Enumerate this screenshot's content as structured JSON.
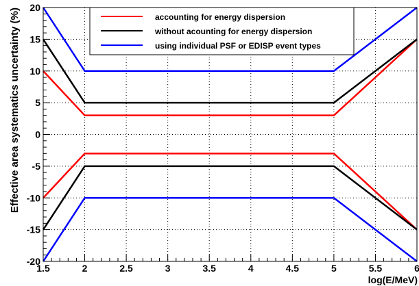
{
  "chart_data": {
    "type": "line",
    "title": "",
    "xlabel": "log(E/MeV)",
    "ylabel": "Effective area systematics uncertainty (%)",
    "xlim": [
      1.5,
      6
    ],
    "ylim": [
      -20,
      20
    ],
    "xticks": [
      1.5,
      2,
      2.5,
      3,
      3.5,
      4,
      4.5,
      5,
      5.5,
      6
    ],
    "xtick_labels": [
      "1.5",
      "2",
      "2.5",
      "3",
      "3.5",
      "4",
      "4.5",
      "5",
      "5.5",
      "6"
    ],
    "yticks": [
      -20,
      -15,
      -10,
      -5,
      0,
      5,
      10,
      15,
      20
    ],
    "ytick_labels": [
      "-20",
      "-15",
      "-10",
      "-5",
      "0",
      "5",
      "10",
      "15",
      "20"
    ],
    "grid": true,
    "legend_position": "top-center",
    "series": [
      {
        "name": "accounting for energy dispersion",
        "color": "#ff0000",
        "upper": {
          "x": [
            1.5,
            2,
            5,
            6
          ],
          "y": [
            10,
            3,
            3,
            15
          ]
        },
        "lower": {
          "x": [
            1.5,
            2,
            5,
            6
          ],
          "y": [
            -10,
            -3,
            -3,
            -15
          ]
        }
      },
      {
        "name": "without acounting for energy dispersion",
        "color": "#000000",
        "upper": {
          "x": [
            1.5,
            2,
            5,
            6
          ],
          "y": [
            15,
            5,
            5,
            15
          ]
        },
        "lower": {
          "x": [
            1.5,
            2,
            5,
            6
          ],
          "y": [
            -15,
            -5,
            -5,
            -15
          ]
        }
      },
      {
        "name": "using individual PSF or EDISP event types",
        "color": "#0000ff",
        "upper": {
          "x": [
            1.5,
            2,
            5,
            6
          ],
          "y": [
            20,
            10,
            10,
            20
          ]
        },
        "lower": {
          "x": [
            1.5,
            2,
            5,
            6
          ],
          "y": [
            -20,
            -10,
            -10,
            -20
          ]
        }
      }
    ]
  }
}
